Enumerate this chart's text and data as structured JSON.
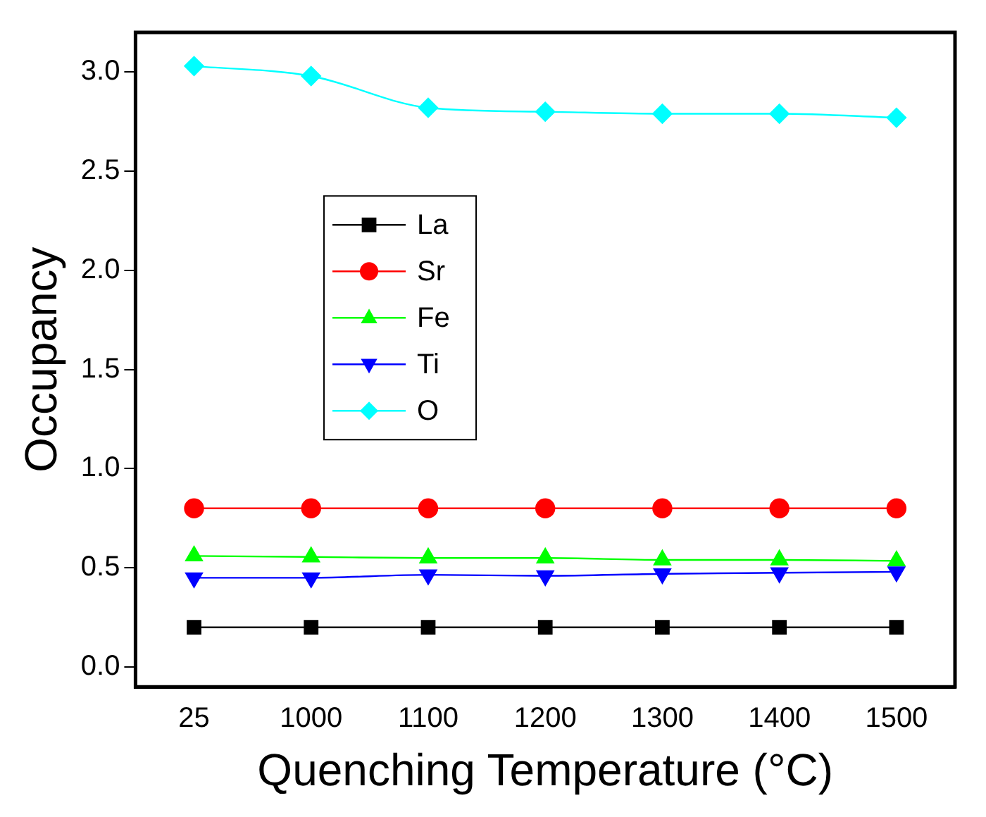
{
  "chart_data": {
    "type": "line",
    "xlabel": "Quenching Temperature (°C)",
    "ylabel": "Occupancy",
    "categories": [
      "25",
      "1000",
      "1100",
      "1200",
      "1300",
      "1400",
      "1500"
    ],
    "series": [
      {
        "name": "La",
        "color": "#000000",
        "marker": "square",
        "values": [
          0.2,
          0.2,
          0.2,
          0.2,
          0.2,
          0.2,
          0.2
        ]
      },
      {
        "name": "Sr",
        "color": "#ff0000",
        "marker": "circle",
        "values": [
          0.8,
          0.8,
          0.8,
          0.8,
          0.8,
          0.8,
          0.8
        ]
      },
      {
        "name": "Fe",
        "color": "#00ff00",
        "marker": "triangle",
        "values": [
          0.56,
          0.555,
          0.55,
          0.55,
          0.54,
          0.54,
          0.535
        ]
      },
      {
        "name": "Ti",
        "color": "#0000ff",
        "marker": "triangle-down",
        "values": [
          0.45,
          0.45,
          0.465,
          0.46,
          0.47,
          0.475,
          0.48
        ]
      },
      {
        "name": "O",
        "color": "#00ffff",
        "marker": "diamond",
        "values": [
          3.03,
          2.98,
          2.82,
          2.8,
          2.79,
          2.79,
          2.77
        ]
      }
    ],
    "ylim": [
      -0.1,
      3.2
    ],
    "yticks": [
      {
        "value": 0,
        "label": "0.0"
      },
      0.5,
      {
        "value": 1,
        "label": "1.0"
      },
      1.5,
      {
        "value": 2,
        "label": "2.0"
      },
      2.5,
      {
        "value": 3,
        "label": "3.0"
      }
    ],
    "grid": false,
    "legend": "top left",
    "line_style": "solid"
  }
}
